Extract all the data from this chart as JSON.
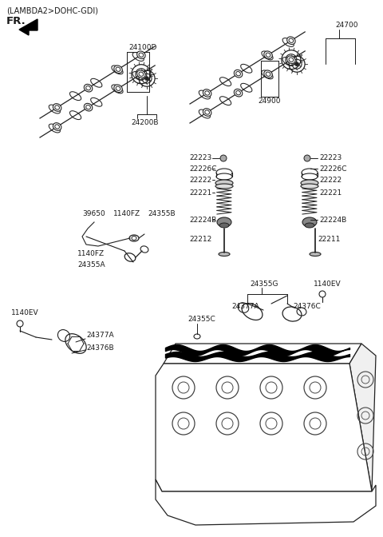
{
  "bg_color": "#ffffff",
  "text_color": "#1a1a1a",
  "fig_width": 4.8,
  "fig_height": 6.72,
  "dpi": 100,
  "labels": {
    "header": "(LAMBDA2>DOHC-GDI)",
    "fr": "FR.",
    "24100D": "24100D",
    "24700": "24700",
    "24900": "24900",
    "24200B": "24200B",
    "22223L": "22223",
    "22226CL": "22226C",
    "22222L": "22222",
    "22221L": "22221",
    "22224BL": "22224B",
    "22212": "22212",
    "22223R": "22223",
    "22226CR": "22226C",
    "22222R": "22222",
    "22221R": "22221",
    "22224BR": "22224B",
    "22211": "22211",
    "39650": "39650",
    "1140FZ_a": "1140FZ",
    "24355B": "24355B",
    "1140FZ_b": "1140FZ",
    "24355A": "24355A",
    "1140EV_L": "1140EV",
    "24377A_L": "24377A",
    "24376B": "24376B",
    "24355C": "24355C",
    "24355G": "24355G",
    "1140EV_R": "1140EV",
    "24377A_R": "24377A",
    "24376C": "24376C"
  }
}
